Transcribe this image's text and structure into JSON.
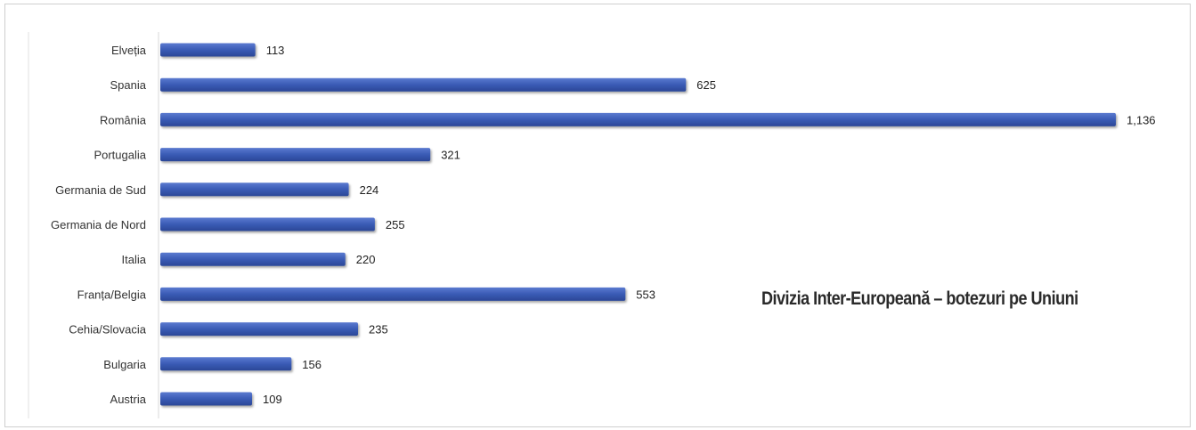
{
  "chart_data": {
    "type": "bar",
    "orientation": "horizontal",
    "title": "Divizia Inter-Europeană – botezuri pe Uniuni",
    "categories": [
      "Elveția",
      "Spania",
      "România",
      "Portugalia",
      "Germania de Sud",
      "Germania de Nord",
      "Italia",
      "Franța/Belgia",
      "Cehia/Slovacia",
      "Bulgaria",
      "Austria"
    ],
    "values": [
      113,
      625,
      1136,
      321,
      224,
      255,
      220,
      553,
      235,
      156,
      109
    ],
    "value_labels": [
      "113",
      "625",
      "1,136",
      "321",
      "224",
      "255",
      "220",
      "553",
      "235",
      "156",
      "109"
    ],
    "xlim": [
      0,
      1136
    ],
    "grid": false,
    "bar_color": "#3a5bb5"
  }
}
